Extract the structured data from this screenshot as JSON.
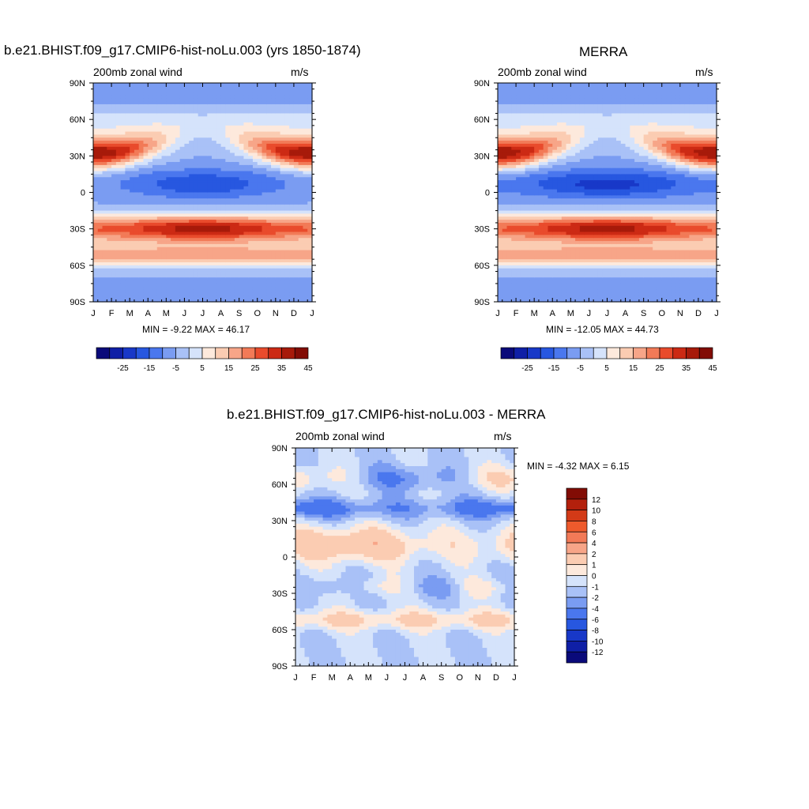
{
  "chart_data": [
    {
      "type": "heatmap",
      "title": "b.e21.BHIST.f09_g17.CMIP6-hist-noLu.003 (yrs 1850-1874)",
      "subtitle": "200mb zonal wind",
      "units": "m/s",
      "x_ticks": [
        "J",
        "F",
        "M",
        "A",
        "M",
        "J",
        "J",
        "A",
        "S",
        "O",
        "N",
        "D",
        "J"
      ],
      "y_ticks": [
        "90N",
        "60N",
        "30N",
        "0",
        "30S",
        "60S",
        "90S"
      ],
      "y_values": [
        90,
        60,
        30,
        0,
        -30,
        -60,
        -90
      ],
      "stats_text": "MIN =  -9.22 MAX =  46.17",
      "min": -9.22,
      "max": 46.17,
      "colorbar_labels": [
        "-25",
        "-15",
        "-5",
        "5",
        "15",
        "25",
        "35",
        "45"
      ],
      "colorbar_levels": [
        -30,
        -25,
        -20,
        -15,
        -10,
        -5,
        0,
        5,
        10,
        15,
        20,
        25,
        30,
        35,
        40,
        45
      ],
      "features": [
        {
          "type": "jet_maximum",
          "lat": 30,
          "month": "F",
          "value": 45
        },
        {
          "type": "jet_maximum",
          "lat": 32,
          "month": "D",
          "value": 40
        },
        {
          "type": "easterly_minimum",
          "lat": 8,
          "month": "A",
          "value": -5
        },
        {
          "type": "jet_maximum",
          "lat": -30,
          "month": "J",
          "value": 45
        },
        {
          "type": "westerly_band",
          "lat": -50,
          "month": "J",
          "value": 30
        }
      ]
    },
    {
      "type": "heatmap",
      "title": "MERRA",
      "subtitle": "200mb zonal wind",
      "units": "m/s",
      "x_ticks": [
        "J",
        "F",
        "M",
        "A",
        "M",
        "J",
        "J",
        "A",
        "S",
        "O",
        "N",
        "D",
        "J"
      ],
      "y_ticks": [
        "90N",
        "60N",
        "30N",
        "0",
        "30S",
        "60S",
        "90S"
      ],
      "y_values": [
        90,
        60,
        30,
        0,
        -30,
        -60,
        -90
      ],
      "stats_text": "MIN = -12.05 MAX =  44.73",
      "min": -12.05,
      "max": 44.73,
      "colorbar_labels": [
        "-25",
        "-15",
        "-5",
        "5",
        "15",
        "25",
        "35",
        "45"
      ],
      "colorbar_levels": [
        -30,
        -25,
        -20,
        -15,
        -10,
        -5,
        0,
        5,
        10,
        15,
        20,
        25,
        30,
        35,
        40,
        45
      ],
      "features": [
        {
          "type": "jet_maximum",
          "lat": 30,
          "month": "F",
          "value": 45
        },
        {
          "type": "jet_maximum",
          "lat": 32,
          "month": "D",
          "value": 40
        },
        {
          "type": "easterly_minimum",
          "lat": 5,
          "month": "A",
          "value": -10
        },
        {
          "type": "jet_maximum",
          "lat": -30,
          "month": "J",
          "value": 40
        },
        {
          "type": "westerly_band",
          "lat": -50,
          "month": "J",
          "value": 30
        }
      ]
    },
    {
      "type": "heatmap",
      "title": "b.e21.BHIST.f09_g17.CMIP6-hist-noLu.003 - MERRA",
      "subtitle": "200mb zonal wind",
      "units": "m/s",
      "x_ticks": [
        "J",
        "F",
        "M",
        "A",
        "M",
        "J",
        "J",
        "A",
        "S",
        "O",
        "N",
        "D",
        "J"
      ],
      "y_ticks": [
        "90N",
        "60N",
        "30N",
        "0",
        "30S",
        "60S",
        "90S"
      ],
      "y_values": [
        90,
        60,
        30,
        0,
        -30,
        -60,
        -90
      ],
      "stats_text": "MIN =  -4.32 MAX =   6.15",
      "min": -4.32,
      "max": 6.15,
      "colorbar_labels": [
        "12",
        "10",
        "8",
        "6",
        "4",
        "2",
        "1",
        "0",
        "-1",
        "-2",
        "-4",
        "-6",
        "-8",
        "-10",
        "-12"
      ],
      "colorbar_levels": [
        12,
        10,
        8,
        6,
        4,
        2,
        1,
        0,
        -1,
        -2,
        -4,
        -6,
        -8,
        -10,
        -12
      ]
    }
  ],
  "colors": {
    "seq_palette": [
      "#0a0a7a",
      "#0f1fa6",
      "#1838c8",
      "#2757e0",
      "#4a77ee",
      "#7a9cf2",
      "#a9c1f7",
      "#d5e3fb",
      "#fde9dc",
      "#fbccb2",
      "#f7a588",
      "#f27a57",
      "#e94b2c",
      "#cc2a14",
      "#a71a0a",
      "#820c05"
    ],
    "diff_palette": [
      "#820c05",
      "#b3200c",
      "#d33a17",
      "#ee5a2c",
      "#f27a57",
      "#f7a588",
      "#fbccb2",
      "#fde9dc",
      "#d5e3fb",
      "#a9c1f7",
      "#7a9cf2",
      "#4a77ee",
      "#2757e0",
      "#1838c8",
      "#0f1fa6",
      "#0a0a7a"
    ]
  }
}
